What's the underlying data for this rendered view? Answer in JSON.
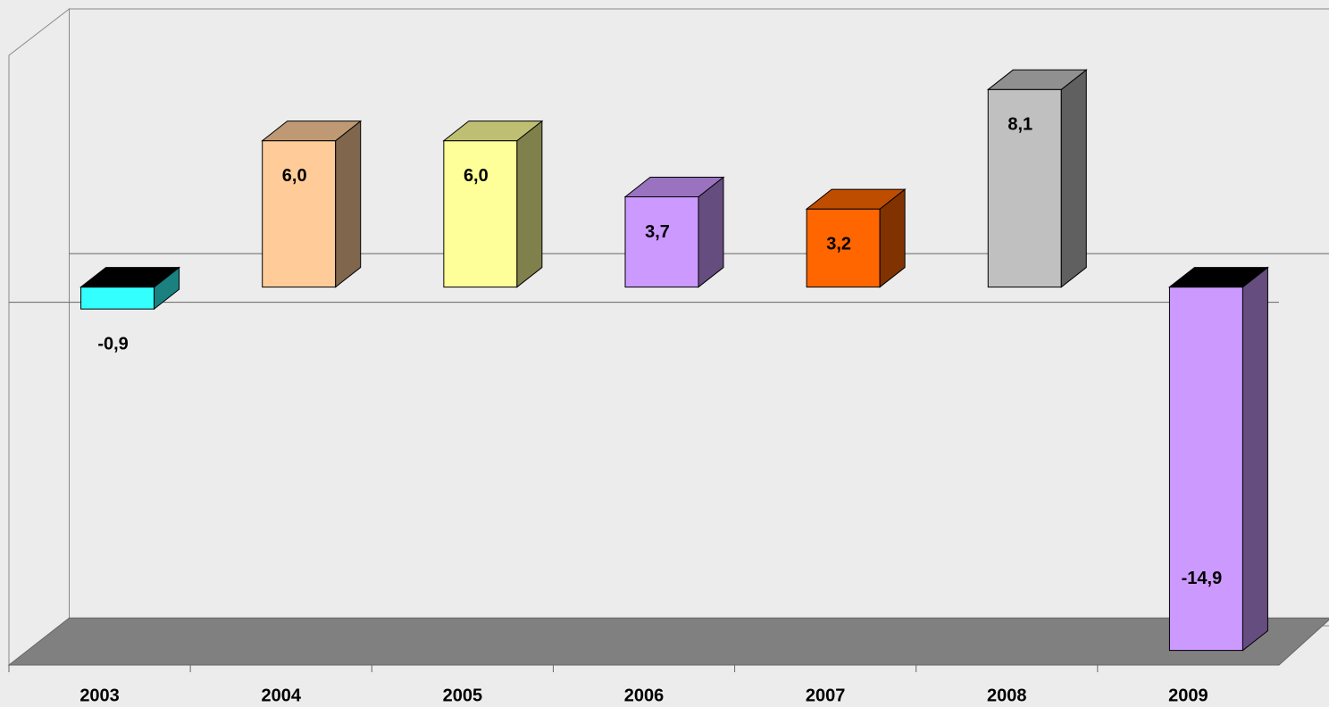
{
  "chart_data": {
    "type": "bar",
    "categories": [
      "2003",
      "2004",
      "2005",
      "2006",
      "2007",
      "2008",
      "2009"
    ],
    "values": [
      -0.9,
      6.0,
      6.0,
      3.7,
      3.2,
      8.1,
      -14.9
    ],
    "value_labels": [
      "-0,9",
      "6,0",
      "6,0",
      "3,7",
      "3,2",
      "8,1",
      "-14,9"
    ],
    "colors": [
      "#33ffff",
      "#ffcc99",
      "#ffff99",
      "#cc99ff",
      "#ff6600",
      "#c0c0c0",
      "#cc99ff"
    ],
    "ylim": [
      -15.5,
      10.6
    ]
  }
}
